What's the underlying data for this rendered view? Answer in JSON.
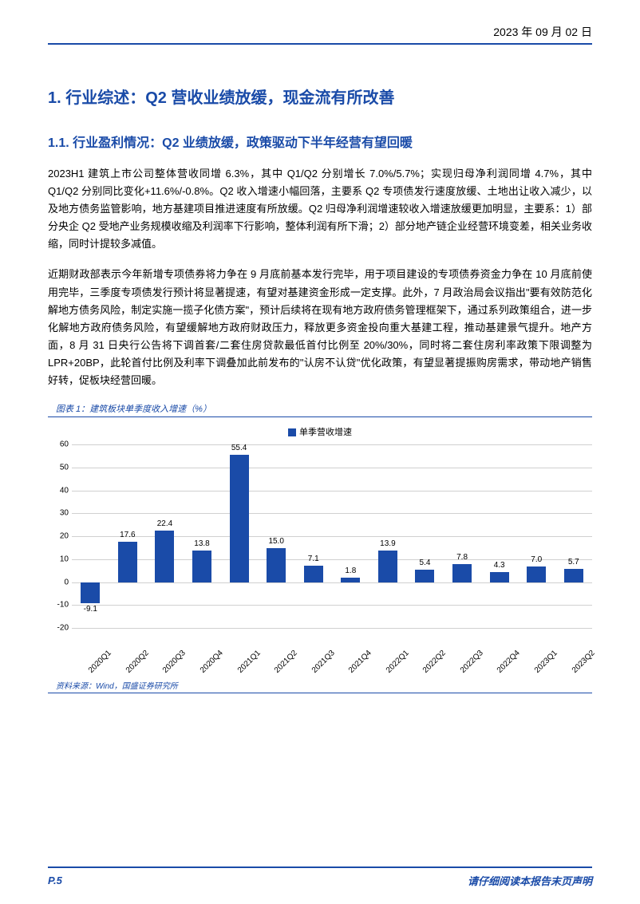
{
  "header": {
    "date": "2023 年 09 月 02 日"
  },
  "section": {
    "title": "1. 行业综述：Q2 营收业绩放缓，现金流有所改善",
    "subtitle": "1.1. 行业盈利情况：Q2 业绩放缓，政策驱动下半年经营有望回暖",
    "p1": "2023H1 建筑上市公司整体营收同增 6.3%，其中 Q1/Q2 分别增长 7.0%/5.7%；实现归母净利润同增 4.7%，其中 Q1/Q2 分别同比变化+11.6%/-0.8%。Q2 收入增速小幅回落，主要系 Q2 专项债发行速度放缓、土地出让收入减少，以及地方债务监管影响，地方基建项目推进速度有所放缓。Q2 归母净利润增速较收入增速放缓更加明显，主要系：1）部分央企 Q2 受地产业务规模收缩及利润率下行影响，整体利润有所下滑；2）部分地产链企业经营环境变差，相关业务收缩，同时计提较多减值。",
    "p2": "近期财政部表示今年新增专项债券将力争在 9 月底前基本发行完毕，用于项目建设的专项债券资金力争在 10 月底前使用完毕，三季度专项债发行预计将显著提速，有望对基建资金形成一定支撑。此外，7 月政治局会议指出\"要有效防范化解地方债务风险，制定实施一揽子化债方案\"，预计后续将在现有地方政府债务管理框架下，通过系列政策组合，进一步化解地方政府债务风险，有望缓解地方政府财政压力，释放更多资金投向重大基建工程，推动基建景气提升。地产方面，8 月 31 日央行公告将下调首套/二套住房贷款最低首付比例至 20%/30%，同时将二套住房利率政策下限调整为 LPR+20BP，此轮首付比例及利率下调叠加此前发布的\"认房不认贷\"优化政策，有望显著提振购房需求，带动地产销售好转，促板块经营回暖。"
  },
  "chart": {
    "title": "图表 1：建筑板块单季度收入增速（%）",
    "legend": "单季营收增速",
    "source": "资料来源：Wind，国盛证券研究所",
    "type": "bar",
    "categories": [
      "2020Q1",
      "2020Q2",
      "2020Q3",
      "2020Q4",
      "2021Q1",
      "2021Q2",
      "2021Q3",
      "2021Q4",
      "2022Q1",
      "2022Q2",
      "2022Q3",
      "2022Q4",
      "2023Q1",
      "2023Q2"
    ],
    "values": [
      -9.1,
      17.6,
      22.4,
      13.8,
      55.4,
      15.0,
      7.1,
      1.8,
      13.9,
      5.4,
      7.8,
      4.3,
      7.0,
      5.7
    ],
    "bar_color": "#1a4ba8",
    "ylim": [
      -20,
      60
    ],
    "ytick_step": 10,
    "grid_color": "#d0d0d0",
    "background_color": "#ffffff"
  },
  "footer": {
    "page": "P.5",
    "disclaimer": "请仔细阅读本报告末页声明"
  }
}
